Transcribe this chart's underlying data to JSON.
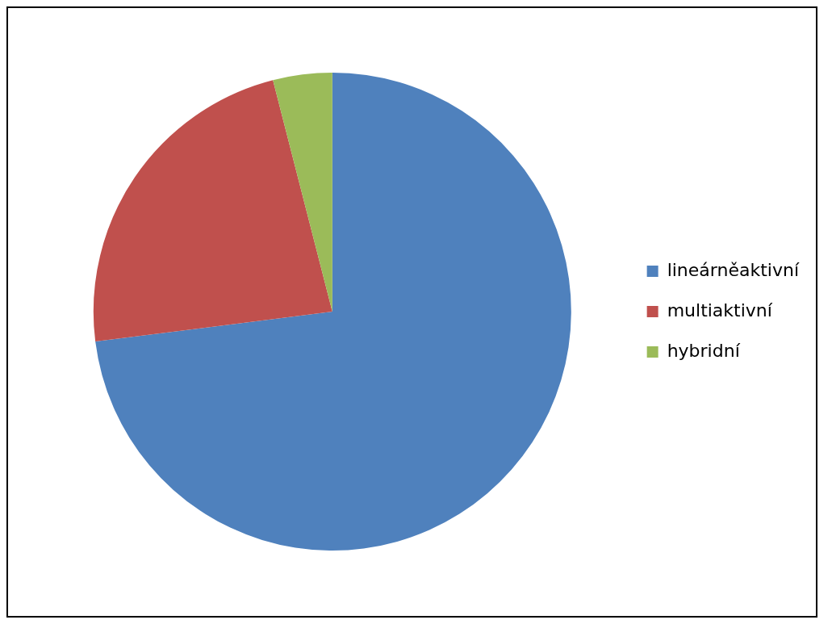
{
  "chart_data": {
    "type": "pie",
    "categories": [
      "lineárněaktivní",
      "multiaktivní",
      "hybridní"
    ],
    "values": [
      73,
      23,
      4
    ],
    "colors": [
      "#4f81bd",
      "#c0504d",
      "#9bbb59"
    ],
    "legend": "right"
  }
}
